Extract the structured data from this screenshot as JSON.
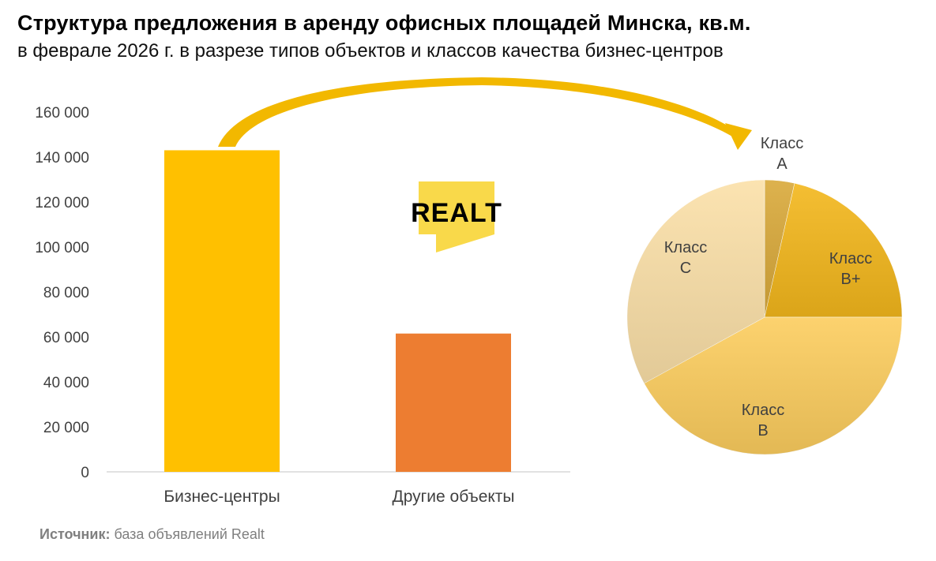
{
  "title": "Структура предложения в аренду офисных площадей Минска, кв.м.",
  "subtitle": "в феврале 2026 г. в разрезе типов объектов и классов качества бизнес-центров",
  "source": {
    "label": "Источник:",
    "text": " база объявлений Realt"
  },
  "logo": {
    "text": "REALT",
    "color": "#f9d94a"
  },
  "colors": {
    "bar1": "#ffc000",
    "bar2": "#ed7d31",
    "arrow": "#f2b800",
    "axis_text": "#404040",
    "axis_line": "#d9d9d9"
  },
  "chart_data": [
    {
      "type": "bar",
      "categories": [
        "Бизнес-центры",
        "Другие объекты"
      ],
      "values": [
        143000,
        61500
      ],
      "ylim": [
        0,
        160000
      ],
      "yticks": [
        "0",
        "20 000",
        "40 000",
        "60 000",
        "80 000",
        "100 000",
        "120 000",
        "140 000",
        "160 000"
      ],
      "grid": false
    },
    {
      "type": "pie",
      "slices": [
        {
          "label": [
            "Класс",
            "A"
          ],
          "value": 3.5,
          "color": "#d9a93a"
        },
        {
          "label": [
            "Класс",
            "B+"
          ],
          "value": 21.5,
          "color": "#f3b71c"
        },
        {
          "label": [
            "Класс",
            "B"
          ],
          "value": 42,
          "color": "#fccd5e"
        },
        {
          "label": [
            "Класс",
            "C"
          ],
          "value": 33,
          "color": "#fbe0a8"
        }
      ]
    }
  ]
}
